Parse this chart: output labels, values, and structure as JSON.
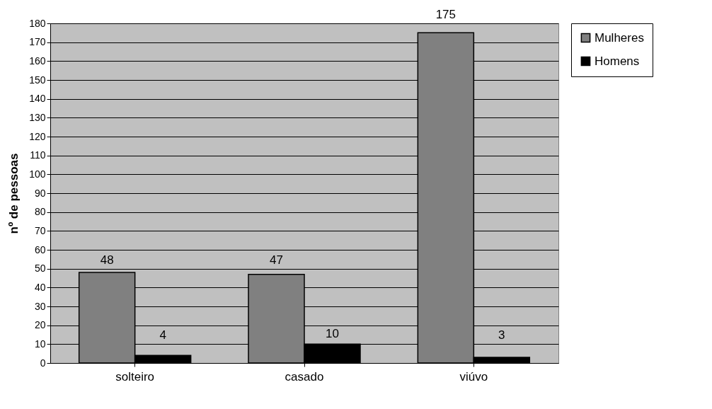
{
  "chart_data": {
    "type": "bar",
    "ylabel": "nº de pessoas",
    "categories": [
      "solteiro",
      "casado",
      "viúvo"
    ],
    "series": [
      {
        "name": "Mulheres",
        "color": "#808080",
        "values": [
          48,
          47,
          175
        ]
      },
      {
        "name": "Homens",
        "color": "#000000",
        "values": [
          4,
          10,
          3
        ]
      }
    ],
    "ylim": [
      0,
      180
    ],
    "yticks": [
      0,
      10,
      20,
      30,
      40,
      50,
      60,
      70,
      80,
      90,
      100,
      110,
      120,
      130,
      140,
      150,
      160,
      170,
      180
    ],
    "grid": "y",
    "legend": "right",
    "data_labels": true
  }
}
